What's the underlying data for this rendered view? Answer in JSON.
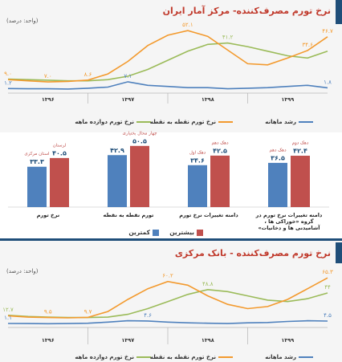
{
  "chart_data": [
    {
      "type": "line",
      "title": "نرخ تورم مصرف‌کننده- مرکز آمار ایران",
      "unit": "(واحد: درصد)",
      "x": [
        0,
        1,
        2,
        3,
        4,
        5,
        6,
        7,
        8,
        9,
        10,
        11,
        12,
        13,
        14,
        15,
        16
      ],
      "xlim": [
        0,
        16
      ],
      "xticks": [
        {
          "value": 2,
          "label": "۱۳۹۶"
        },
        {
          "value": 6,
          "label": "۱۳۹۷"
        },
        {
          "value": 10,
          "label": "۱۳۹۸"
        },
        {
          "value": 14,
          "label": "۱۳۹۹"
        }
      ],
      "ylim": [
        0,
        55
      ],
      "series": [
        {
          "name": "نرخ تورم دوازده ماهه",
          "color": "#9bbb59",
          "values": [
            9.5,
            9,
            8.5,
            8,
            8,
            9,
            12,
            18,
            26,
            34,
            40,
            41.2,
            38,
            34,
            30,
            28,
            34
          ],
          "value_labels": [
            null,
            null,
            null,
            null,
            null,
            null,
            null,
            null,
            null,
            null,
            null,
            "۴۱.۲",
            null,
            null,
            null,
            null,
            null
          ]
        },
        {
          "name": "نرخ تورم نقطه به نقطه",
          "color": "#f39a2e",
          "values": [
            9.0,
            8,
            7.0,
            7.5,
            8.6,
            14,
            25,
            39,
            48,
            52.1,
            47,
            35,
            23,
            22,
            28,
            34.6,
            46.7
          ],
          "value_labels": [
            "۹.۰",
            null,
            "۷.۰",
            null,
            "۸.۶",
            null,
            null,
            null,
            null,
            "۵۲.۱",
            null,
            null,
            null,
            null,
            null,
            "۳۴.۶",
            "۴۶.۷"
          ]
        },
        {
          "name": "رشد ماهانه",
          "color": "#4f81bd",
          "values": [
            1.2,
            1,
            1,
            0.8,
            1.5,
            2.5,
            7.1,
            4,
            3,
            2,
            2,
            1,
            1.5,
            2,
            3,
            4,
            1.8
          ],
          "value_labels": [
            "۱.۲",
            null,
            null,
            null,
            null,
            null,
            "۷.۱",
            null,
            null,
            null,
            null,
            null,
            null,
            null,
            null,
            null,
            "۱.۸"
          ]
        }
      ]
    },
    {
      "type": "bar",
      "categories": [
        "نرخ تورم",
        "تورم نقطه به نقطه",
        "دامنه تغییرات نرخ تورم",
        "دامنه تغییرات نرخ تورم در گروه «خوراکی ها ، آشامیدنی ها و دخانیات»"
      ],
      "ylim": [
        0,
        55
      ],
      "series": [
        {
          "name": "کمترین",
          "color": "#4f81bd",
          "values": [
            33.3,
            42.9,
            34.6,
            36.5
          ],
          "value_labels": [
            "۳۳.۳",
            "۴۲.۹",
            "۳۴.۶",
            "۳۶.۵"
          ],
          "notes": [
            "استان مرکزی",
            null,
            "دهک اول",
            "دهک دهم"
          ]
        },
        {
          "name": "بیشترین",
          "color": "#c0504d",
          "values": [
            40.5,
            50.5,
            42.5,
            42.4
          ],
          "value_labels": [
            "۴۰.۵",
            "۵۰.۵",
            "۴۲.۵",
            "۴۲.۴"
          ],
          "notes": [
            "لرستان",
            "چهار محال بختیاری",
            "دهک دهم",
            "دهک دوم"
          ]
        }
      ]
    },
    {
      "type": "line",
      "title": "نرخ تورم مصرف‌کننده - بانک مرکزی",
      "unit": "(واحد: درصد)",
      "x": [
        0,
        1,
        2,
        3,
        4,
        5,
        6,
        7,
        8,
        9,
        10,
        11,
        12,
        13,
        14,
        15,
        16
      ],
      "xlim": [
        0,
        16
      ],
      "xticks": [
        {
          "value": 2,
          "label": "۱۳۹۶"
        },
        {
          "value": 6,
          "label": "۱۳۹۷"
        },
        {
          "value": 10,
          "label": "۱۳۹۸"
        },
        {
          "value": 14,
          "label": "۱۳۹۹"
        }
      ],
      "ylim": [
        0,
        70
      ],
      "series": [
        {
          "name": "نرخ تورم دوازده ماهه",
          "color": "#9bbb59",
          "values": [
            12.7,
            11,
            10,
            9.5,
            9.5,
            10,
            14,
            22,
            32,
            42,
            48.8,
            46,
            40,
            34,
            32,
            36,
            44
          ],
          "value_labels": [
            "۱۲.۷",
            null,
            null,
            null,
            null,
            null,
            null,
            null,
            null,
            null,
            "۴۸.۸",
            null,
            null,
            null,
            null,
            null,
            "۴۴"
          ]
        },
        {
          "name": "نرخ تورم نقطه به نقطه",
          "color": "#f39a2e",
          "values": [
            12,
            10,
            9.5,
            9,
            9.7,
            18,
            35,
            50,
            60.2,
            55,
            40,
            28,
            22,
            25,
            35,
            50,
            65.3
          ],
          "value_labels": [
            null,
            null,
            "۹.۵",
            null,
            "۹.۷",
            null,
            null,
            null,
            "۶۰.۲",
            null,
            null,
            null,
            null,
            null,
            null,
            null,
            "۶۵.۳"
          ]
        },
        {
          "name": "رشد ماهانه",
          "color": "#4f81bd",
          "values": [
            1.1,
            1,
            0.8,
            1,
            1.5,
            3,
            5,
            4.6,
            3,
            2,
            1.5,
            1,
            2,
            2.5,
            4,
            5,
            4.5
          ],
          "value_labels": [
            "۱.۱",
            null,
            null,
            null,
            null,
            null,
            null,
            "۴.۶",
            null,
            null,
            null,
            null,
            null,
            null,
            null,
            null,
            "۴.۵"
          ]
        }
      ]
    }
  ]
}
